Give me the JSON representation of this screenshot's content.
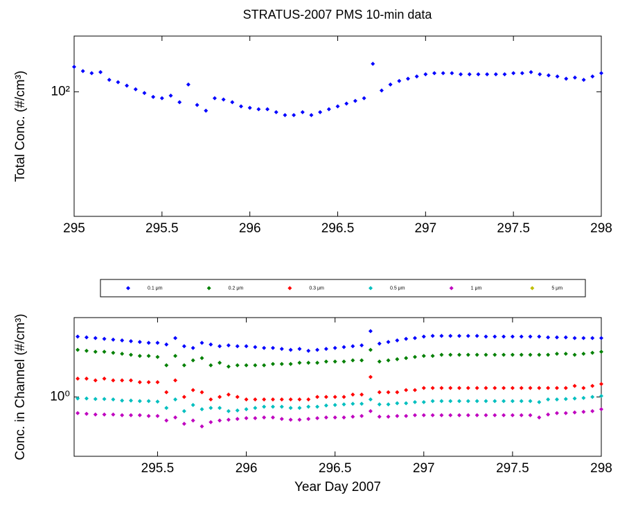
{
  "chart_data": [
    {
      "type": "scatter",
      "title": "STRATUS-2007 PMS 10-min data",
      "ylabel": "Total Conc. (#/cm³)",
      "log_y": true,
      "xlim": [
        295,
        298
      ],
      "xticks": [
        295,
        295.5,
        296,
        296.5,
        297,
        297.5,
        298
      ],
      "ylim": [
        37,
        156
      ],
      "yticks": [
        {
          "value": 100,
          "label": "10²"
        }
      ],
      "x": [
        295,
        295.05,
        295.1,
        295.15,
        295.2,
        295.25,
        295.3,
        295.35,
        295.4,
        295.45,
        295.5,
        295.55,
        295.6,
        295.65,
        295.7,
        295.75,
        295.8,
        295.85,
        295.9,
        295.95,
        296,
        296.05,
        296.1,
        296.15,
        296.2,
        296.25,
        296.3,
        296.35,
        296.4,
        296.45,
        296.5,
        296.55,
        296.6,
        296.65,
        296.7,
        296.75,
        296.8,
        296.85,
        296.9,
        296.95,
        297,
        297.05,
        297.1,
        297.15,
        297.2,
        297.25,
        297.3,
        297.35,
        297.4,
        297.45,
        297.5,
        297.55,
        297.6,
        297.65,
        297.7,
        297.75,
        297.8,
        297.85,
        297.9,
        297.95,
        298
      ],
      "series": [
        {
          "name": "Total",
          "color": "#0000ff",
          "values": [
            122,
            118,
            116,
            117,
            110,
            108,
            105,
            102,
            99,
            96,
            95,
            97,
            92,
            106,
            90,
            86,
            95,
            94,
            92,
            89,
            88,
            87,
            87,
            85,
            83,
            83,
            85,
            83,
            85,
            87,
            89,
            91,
            93,
            95,
            125,
            101,
            106,
            109,
            111,
            113,
            115,
            116,
            116,
            116,
            115,
            115,
            115,
            115,
            115,
            115,
            116,
            116,
            117,
            115,
            114,
            113,
            111,
            112,
            110,
            113,
            116
          ]
        }
      ]
    },
    {
      "type": "scatter",
      "ylabel": "Conc. in Channel (#/cm³)",
      "xlabel": "Year Day 2007",
      "log_y": true,
      "legend": "top",
      "xlim": [
        295.03,
        298
      ],
      "xticks": [
        295.5,
        296,
        296.5,
        297,
        297.5,
        298
      ],
      "ylim": [
        0.3,
        5
      ],
      "yticks": [
        {
          "value": 1,
          "label": "10⁰"
        }
      ],
      "x": [
        295.05,
        295.1,
        295.15,
        295.2,
        295.25,
        295.3,
        295.35,
        295.4,
        295.45,
        295.5,
        295.55,
        295.6,
        295.65,
        295.7,
        295.75,
        295.8,
        295.85,
        295.9,
        295.95,
        296,
        296.05,
        296.1,
        296.15,
        296.2,
        296.25,
        296.3,
        296.35,
        296.4,
        296.45,
        296.5,
        296.55,
        296.6,
        296.65,
        296.7,
        296.75,
        296.8,
        296.85,
        296.9,
        296.95,
        297,
        297.05,
        297.1,
        297.15,
        297.2,
        297.25,
        297.3,
        297.35,
        297.4,
        297.45,
        297.5,
        297.55,
        297.6,
        297.65,
        297.7,
        297.75,
        297.8,
        297.85,
        297.9,
        297.95,
        298
      ],
      "series": [
        {
          "name": "0.1 μm",
          "color": "#0000ff",
          "values": [
            3.4,
            3.35,
            3.3,
            3.25,
            3.2,
            3.15,
            3.1,
            3.05,
            3.0,
            3.0,
            2.9,
            3.3,
            2.8,
            2.7,
            3.0,
            2.9,
            2.8,
            2.85,
            2.8,
            2.8,
            2.75,
            2.7,
            2.7,
            2.65,
            2.6,
            2.65,
            2.55,
            2.6,
            2.65,
            2.7,
            2.75,
            2.8,
            2.85,
            3.8,
            2.95,
            3.05,
            3.15,
            3.25,
            3.3,
            3.4,
            3.45,
            3.45,
            3.45,
            3.45,
            3.45,
            3.45,
            3.4,
            3.4,
            3.4,
            3.4,
            3.4,
            3.4,
            3.4,
            3.35,
            3.35,
            3.35,
            3.3,
            3.3,
            3.3,
            3.3
          ]
        },
        {
          "name": "0.2 μm",
          "color": "#008000",
          "values": [
            2.6,
            2.55,
            2.5,
            2.5,
            2.45,
            2.4,
            2.35,
            2.3,
            2.3,
            2.25,
            1.9,
            2.3,
            1.9,
            2.1,
            2.2,
            1.9,
            2.0,
            1.85,
            1.9,
            1.9,
            1.9,
            1.9,
            1.95,
            1.95,
            1.95,
            2.0,
            2.0,
            2.0,
            2.05,
            2.05,
            2.05,
            2.1,
            2.1,
            2.6,
            2.05,
            2.1,
            2.15,
            2.2,
            2.25,
            2.3,
            2.3,
            2.35,
            2.35,
            2.35,
            2.35,
            2.35,
            2.35,
            2.35,
            2.35,
            2.35,
            2.35,
            2.35,
            2.35,
            2.35,
            2.4,
            2.4,
            2.35,
            2.4,
            2.45,
            2.5
          ]
        },
        {
          "name": "0.3 μm",
          "color": "#ff0000",
          "values": [
            1.45,
            1.45,
            1.4,
            1.45,
            1.4,
            1.4,
            1.4,
            1.35,
            1.35,
            1.35,
            1.1,
            1.4,
            1.0,
            1.15,
            1.1,
            0.95,
            1.0,
            1.05,
            1.0,
            0.95,
            0.95,
            0.95,
            0.95,
            0.95,
            0.95,
            0.95,
            0.95,
            1.0,
            1.0,
            1.0,
            1.0,
            1.05,
            1.05,
            1.5,
            1.1,
            1.1,
            1.1,
            1.15,
            1.15,
            1.2,
            1.2,
            1.2,
            1.2,
            1.2,
            1.2,
            1.2,
            1.2,
            1.2,
            1.2,
            1.2,
            1.2,
            1.2,
            1.2,
            1.2,
            1.2,
            1.2,
            1.25,
            1.2,
            1.25,
            1.3
          ]
        },
        {
          "name": "0.5 μm",
          "color": "#00bfbf",
          "values": [
            0.97,
            0.97,
            0.96,
            0.96,
            0.95,
            0.93,
            0.93,
            0.92,
            0.92,
            0.91,
            0.8,
            0.95,
            0.75,
            0.85,
            0.78,
            0.8,
            0.8,
            0.75,
            0.76,
            0.78,
            0.8,
            0.82,
            0.82,
            0.82,
            0.8,
            0.8,
            0.82,
            0.82,
            0.84,
            0.85,
            0.86,
            0.87,
            0.87,
            0.95,
            0.86,
            0.86,
            0.88,
            0.88,
            0.9,
            0.9,
            0.92,
            0.92,
            0.92,
            0.92,
            0.92,
            0.92,
            0.92,
            0.92,
            0.92,
            0.92,
            0.92,
            0.92,
            0.9,
            0.95,
            0.95,
            0.96,
            0.97,
            0.98,
            1.0,
            1.02
          ]
        },
        {
          "name": "1 μm",
          "color": "#bf00bf",
          "values": [
            0.72,
            0.71,
            0.7,
            0.7,
            0.7,
            0.69,
            0.69,
            0.69,
            0.68,
            0.68,
            0.62,
            0.66,
            0.58,
            0.62,
            0.55,
            0.6,
            0.62,
            0.63,
            0.64,
            0.65,
            0.65,
            0.66,
            0.66,
            0.64,
            0.63,
            0.63,
            0.64,
            0.65,
            0.66,
            0.66,
            0.66,
            0.67,
            0.68,
            0.75,
            0.67,
            0.67,
            0.68,
            0.68,
            0.69,
            0.69,
            0.69,
            0.69,
            0.69,
            0.69,
            0.69,
            0.69,
            0.69,
            0.69,
            0.69,
            0.69,
            0.69,
            0.69,
            0.66,
            0.7,
            0.72,
            0.72,
            0.73,
            0.74,
            0.75,
            0.78
          ]
        },
        {
          "name": "5 μm",
          "color": "#bfbf00",
          "values": [
            null,
            null,
            null,
            null,
            null,
            null,
            null,
            null,
            null,
            null,
            null,
            null,
            null,
            null,
            null,
            null,
            null,
            null,
            null,
            null,
            null,
            null,
            null,
            null,
            null,
            null,
            null,
            null,
            null,
            null,
            null,
            null,
            null,
            null,
            null,
            null,
            null,
            null,
            null,
            null,
            null,
            null,
            null,
            null,
            null,
            null,
            null,
            null,
            null,
            null,
            null,
            null,
            null,
            null,
            null,
            null,
            null,
            null,
            null,
            null
          ]
        }
      ]
    }
  ]
}
